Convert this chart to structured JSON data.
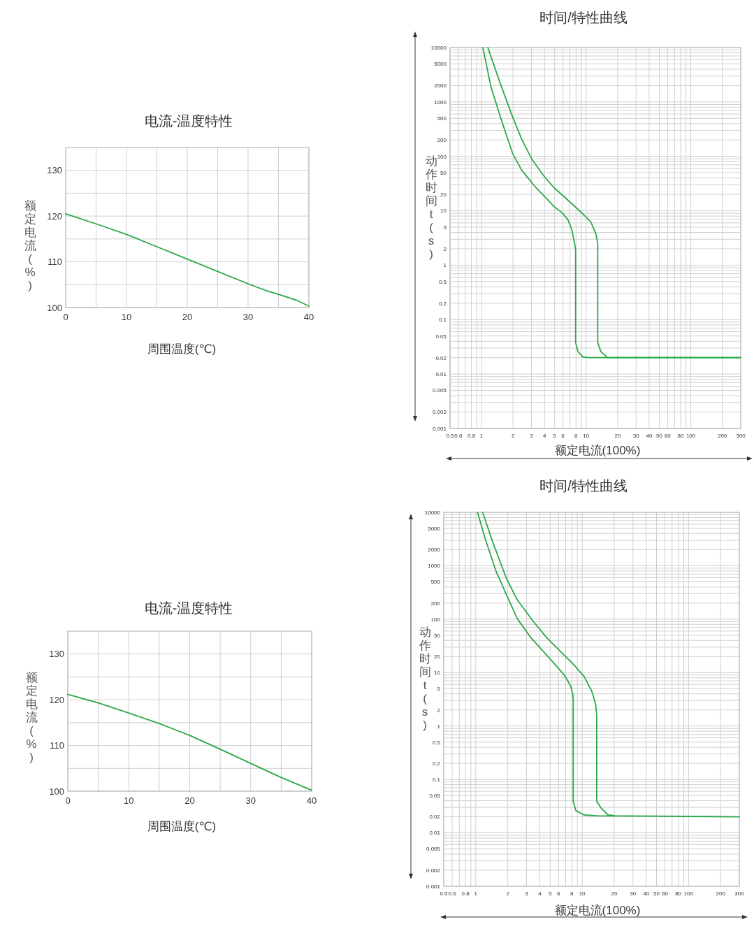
{
  "chart_data": [
    {
      "type": "line",
      "title": "电流-温度特性",
      "xlabel": "周围温度(℃)",
      "ylabel": "额定电流(%)",
      "xlim": [
        0,
        40
      ],
      "ylim": [
        100,
        135
      ],
      "xticks": [
        0,
        {
          "value": 5,
          "label": null
        },
        10,
        {
          "value": 15,
          "label": null
        },
        20,
        {
          "value": 25,
          "label": null
        },
        30,
        {
          "value": 35,
          "label": null
        },
        40
      ],
      "yticks": [
        100,
        {
          "value": 105,
          "label": null
        },
        110,
        {
          "value": 115,
          "label": null
        },
        120,
        {
          "value": 125,
          "label": null
        },
        130
      ],
      "grid": true,
      "series": [
        {
          "color": "#2ba84a",
          "x": [
            0,
            5,
            10,
            15,
            20,
            25,
            30,
            33,
            35,
            38,
            40
          ],
          "values": [
            120.5,
            118.3,
            116.0,
            113.3,
            110.6,
            107.9,
            105.2,
            103.7,
            102.9,
            101.6,
            100.3
          ]
        }
      ]
    },
    {
      "type": "line",
      "title": "时间/特性曲线",
      "xlabel": "额定电流(100%)",
      "ylabel": "动作时间t(s)",
      "log": "xy",
      "xlim": [
        0.5,
        300
      ],
      "ylim": [
        0.001,
        10000
      ],
      "xticks": [
        0.5,
        0.6,
        0.8,
        1,
        2,
        3,
        4,
        5,
        6,
        8,
        10,
        20,
        30,
        40,
        50,
        60,
        80,
        100,
        200,
        300
      ],
      "yticks": [
        0.001,
        0.002,
        0.005,
        0.01,
        0.02,
        0.05,
        0.1,
        0.2,
        0.5,
        1,
        2,
        5,
        10,
        20,
        50,
        100,
        200,
        500,
        1000,
        2000,
        5000,
        10000
      ],
      "grid": true,
      "series": [
        {
          "color": "#2ba84a",
          "x": [
            1.03,
            1.23,
            1.54,
            1.99,
            2.42,
            3.21,
            4.02,
            5.02,
            5.89,
            6.66,
            7.25,
            7.8,
            7.93,
            7.93,
            8.34,
            9.33,
            10.7,
            300
          ],
          "values": [
            10000,
            1900,
            480,
            111,
            56,
            28.6,
            18.2,
            11.6,
            9.2,
            6.95,
            4.68,
            2.37,
            1.89,
            0.038,
            0.026,
            0.0205,
            0.02,
            0.02
          ]
        },
        {
          "color": "#2ba84a",
          "x": [
            1.15,
            1.46,
            1.93,
            2.42,
            3.03,
            3.9,
            4.89,
            5.95,
            7.88,
            9.34,
            11.1,
            12.4,
            12.9,
            12.9,
            13.8,
            16,
            300
          ],
          "values": [
            10000,
            2630,
            605,
            207,
            88.5,
            44.9,
            27,
            19.2,
            11.8,
            8.7,
            6.2,
            3.73,
            2.51,
            0.038,
            0.026,
            0.02,
            0.02
          ]
        }
      ]
    },
    {
      "type": "line",
      "title": "电流-温度特性",
      "xlabel": "周围温度(℃)",
      "ylabel": "额定电流(%)",
      "xlim": [
        0,
        40
      ],
      "ylim": [
        100,
        135
      ],
      "xticks": [
        0,
        {
          "value": 5,
          "label": null
        },
        10,
        {
          "value": 15,
          "label": null
        },
        20,
        {
          "value": 25,
          "label": null
        },
        30,
        {
          "value": 35,
          "label": null
        },
        40
      ],
      "yticks": [
        100,
        {
          "value": 105,
          "label": null
        },
        110,
        {
          "value": 115,
          "label": null
        },
        120,
        {
          "value": 125,
          "label": null
        },
        130
      ],
      "grid": true,
      "series": [
        {
          "color": "#2ba84a",
          "x": [
            0,
            5,
            10,
            15,
            20,
            25,
            30,
            35,
            40
          ],
          "values": [
            121.2,
            119.3,
            117.1,
            114.8,
            112.2,
            109.2,
            106.1,
            103.0,
            100.2
          ]
        }
      ]
    },
    {
      "type": "line",
      "title": "时间/特性曲线",
      "xlabel": "额定电流(100%)",
      "ylabel": "动作时间t(s)",
      "log": "xy",
      "xlim": [
        0.5,
        300
      ],
      "ylim": [
        0.001,
        10000
      ],
      "xticks": [
        0.5,
        0.6,
        0.8,
        1,
        2,
        3,
        4,
        5,
        6,
        8,
        10,
        20,
        30,
        40,
        50,
        60,
        80,
        100,
        200,
        300
      ],
      "yticks": [
        0.001,
        0.002,
        0.005,
        0.01,
        0.02,
        0.05,
        0.1,
        0.2,
        0.5,
        1,
        2,
        5,
        10,
        20,
        50,
        100,
        200,
        500,
        1000,
        2000,
        5000,
        10000
      ],
      "grid": true,
      "series": [
        {
          "color": "#2ba84a",
          "x": [
            1.04,
            1.22,
            1.54,
            1.94,
            2.45,
            3.27,
            4.37,
            5.83,
            6.93,
            7.78,
            8.15,
            8.24,
            8.24,
            8.73,
            10.4,
            13.9,
            300
          ],
          "values": [
            10000,
            3300,
            820,
            290,
            103,
            45.7,
            24.2,
            12.8,
            8.5,
            5.7,
            4.0,
            3.19,
            0.039,
            0.026,
            0.0216,
            0.0209,
            0.02
          ]
        },
        {
          "color": "#2ba84a",
          "x": [
            1.16,
            1.46,
            1.94,
            2.45,
            3.47,
            4.62,
            6.17,
            8.24,
            10.4,
            12.3,
            13.4,
            13.7,
            13.7,
            15.1,
            17.5,
            20
          ],
          "values": [
            10000,
            2610,
            580,
            231,
            91,
            45.7,
            25.6,
            14.4,
            8.5,
            4.5,
            2.54,
            1.6,
            0.039,
            0.029,
            0.0216,
            0.021
          ]
        }
      ]
    }
  ]
}
